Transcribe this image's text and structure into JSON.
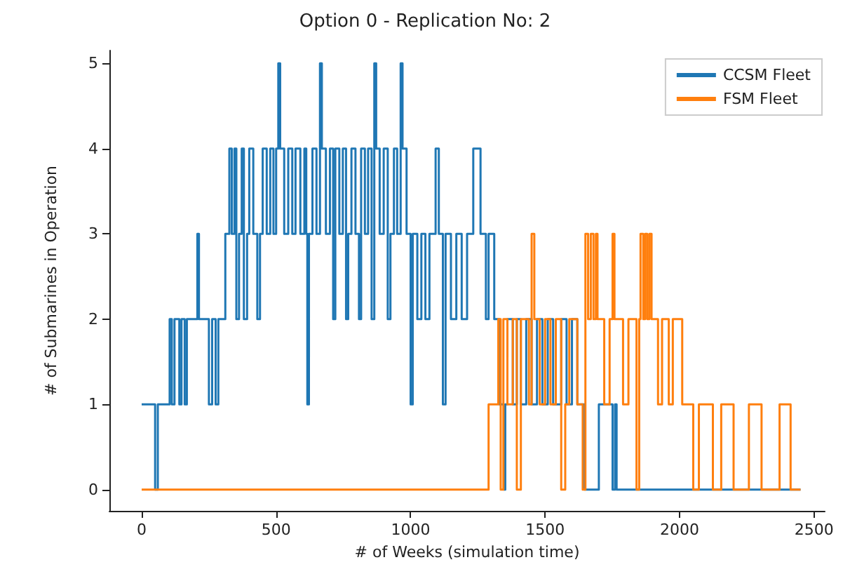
{
  "chart_data": {
    "type": "step",
    "title": "Option 0 - Replication No: 2",
    "xlabel": "# of Weeks (simulation time)",
    "ylabel": "# of Submarines in Operation",
    "series": [
      {
        "name": "CCSM Fleet",
        "color": "#1f77b4",
        "x": [
          0,
          50,
          60,
          104,
          112,
          122,
          140,
          148,
          160,
          168,
          207,
          213,
          250,
          262,
          275,
          285,
          311,
          326,
          335,
          345,
          352,
          362,
          372,
          380,
          392,
          400,
          415,
          430,
          440,
          450,
          465,
          478,
          490,
          500,
          508,
          515,
          530,
          545,
          560,
          572,
          590,
          605,
          612,
          616,
          622,
          635,
          650,
          663,
          670,
          685,
          700,
          712,
          720,
          735,
          748,
          760,
          768,
          780,
          795,
          808,
          816,
          830,
          842,
          855,
          865,
          872,
          885,
          900,
          915,
          925,
          938,
          950,
          963,
          970,
          985,
          1000,
          1008,
          1025,
          1040,
          1055,
          1070,
          1093,
          1105,
          1120,
          1130,
          1150,
          1170,
          1190,
          1210,
          1233,
          1260,
          1280,
          1290,
          1311,
          1330,
          1347,
          1352,
          1360,
          1380,
          1395,
          1410,
          1430,
          1450,
          1470,
          1490,
          1510,
          1530,
          1560,
          1580,
          1600,
          1620,
          1647,
          1700,
          1751,
          1760,
          1766,
          2450
        ],
        "values": [
          1,
          0,
          1,
          2,
          1,
          2,
          1,
          2,
          1,
          2,
          3,
          2,
          1,
          2,
          1,
          2,
          3,
          4,
          3,
          4,
          2,
          3,
          4,
          2,
          3,
          4,
          3,
          2,
          3,
          4,
          3,
          4,
          3,
          4,
          5,
          4,
          3,
          4,
          3,
          4,
          3,
          4,
          3,
          1,
          3,
          4,
          3,
          5,
          4,
          3,
          4,
          2,
          4,
          3,
          4,
          2,
          3,
          4,
          3,
          2,
          4,
          3,
          4,
          2,
          5,
          4,
          3,
          4,
          2,
          3,
          4,
          3,
          5,
          4,
          3,
          1,
          3,
          2,
          3,
          2,
          3,
          4,
          3,
          1,
          3,
          2,
          3,
          2,
          3,
          4,
          3,
          2,
          3,
          2,
          1,
          0,
          1,
          2,
          1,
          2,
          1,
          2,
          1,
          2,
          1,
          2,
          1,
          2,
          1,
          2,
          1,
          0,
          1,
          0,
          1,
          0,
          0
        ]
      },
      {
        "name": "FSM Fleet",
        "color": "#ff7f0e",
        "x": [
          0,
          1290,
          1326,
          1335,
          1345,
          1360,
          1380,
          1395,
          1410,
          1440,
          1450,
          1460,
          1480,
          1500,
          1520,
          1540,
          1560,
          1575,
          1590,
          1620,
          1640,
          1650,
          1660,
          1670,
          1680,
          1689,
          1695,
          1720,
          1740,
          1751,
          1758,
          1790,
          1810,
          1840,
          1850,
          1855,
          1865,
          1872,
          1880,
          1888,
          1896,
          1920,
          1935,
          1960,
          1975,
          2010,
          2051,
          2072,
          2124,
          2155,
          2201,
          2258,
          2305,
          2372,
          2413,
          2450
        ],
        "values": [
          0,
          1,
          2,
          0,
          2,
          1,
          2,
          0,
          2,
          1,
          3,
          2,
          1,
          2,
          1,
          2,
          0,
          1,
          2,
          1,
          0,
          3,
          2,
          3,
          2,
          3,
          2,
          1,
          2,
          3,
          2,
          1,
          2,
          0,
          2,
          3,
          2,
          3,
          2,
          3,
          2,
          1,
          2,
          1,
          2,
          1,
          0,
          1,
          0,
          1,
          0,
          1,
          0,
          1,
          0,
          0
        ]
      }
    ],
    "xlim": [
      -120,
      2540
    ],
    "xticks": [
      0,
      500,
      1000,
      1500,
      2000,
      2500
    ],
    "ylim": [
      -0.25,
      5.15
    ],
    "yticks": [
      0,
      1,
      2,
      3,
      4,
      5
    ],
    "grid": false,
    "legend": "top right",
    "marker": "none",
    "line_style": "solid"
  }
}
